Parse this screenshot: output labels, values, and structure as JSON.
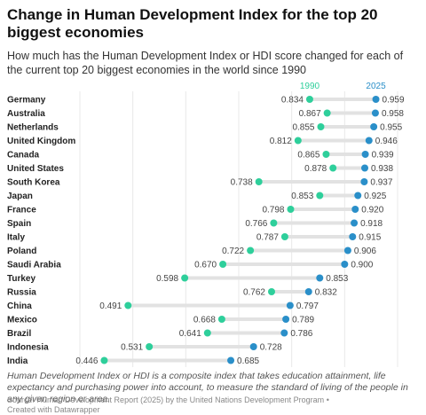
{
  "header": {
    "title": "Change in Human Development Index for the top 20 biggest economies",
    "subtitle": "How much has the Human Development Index or HDI score changed for each of the current top 20 biggest economies in the world since 1990"
  },
  "footer": {
    "note": "Human Development Index or HDI is a composite index that takes education attainment, life expectancy and purchasing power into account, to measure the standard of living of the people in any given region or area.",
    "source": "Source: Human Development Report (2025) by the United Nations Development Program",
    "credit": "Created with Datawrapper"
  },
  "colors": {
    "start": "#2ecf9b",
    "end": "#2a8fc9",
    "range_bar": "#e2e2e2",
    "grid": "#e8e8e8"
  },
  "chart_data": {
    "type": "range-dot",
    "xlim": [
      0.4,
      1.0
    ],
    "x_ticks": [
      "0.400",
      "0.500",
      "0.600",
      "0.700",
      "0.800",
      "0.900",
      "1.000"
    ],
    "grid": true,
    "series": [
      {
        "name": "1990",
        "color": "#2ecf9b"
      },
      {
        "name": "2025",
        "color": "#2a8fc9"
      }
    ],
    "rows": [
      {
        "country": "Germany",
        "start": 0.834,
        "end": 0.959
      },
      {
        "country": "Australia",
        "start": 0.867,
        "end": 0.958
      },
      {
        "country": "Netherlands",
        "start": 0.855,
        "end": 0.955
      },
      {
        "country": "United Kingdom",
        "start": 0.812,
        "end": 0.946
      },
      {
        "country": "Canada",
        "start": 0.865,
        "end": 0.939
      },
      {
        "country": "United States",
        "start": 0.878,
        "end": 0.938
      },
      {
        "country": "South Korea",
        "start": 0.738,
        "end": 0.937
      },
      {
        "country": "Japan",
        "start": 0.853,
        "end": 0.925
      },
      {
        "country": "France",
        "start": 0.798,
        "end": 0.92
      },
      {
        "country": "Spain",
        "start": 0.766,
        "end": 0.918
      },
      {
        "country": "Italy",
        "start": 0.787,
        "end": 0.915
      },
      {
        "country": "Poland",
        "start": 0.722,
        "end": 0.906
      },
      {
        "country": "Saudi Arabia",
        "start": 0.67,
        "end": 0.9
      },
      {
        "country": "Turkey",
        "start": 0.598,
        "end": 0.853
      },
      {
        "country": "Russia",
        "start": 0.762,
        "end": 0.832
      },
      {
        "country": "China",
        "start": 0.491,
        "end": 0.797
      },
      {
        "country": "Mexico",
        "start": 0.668,
        "end": 0.789
      },
      {
        "country": "Brazil",
        "start": 0.641,
        "end": 0.786
      },
      {
        "country": "Indonesia",
        "start": 0.531,
        "end": 0.728
      },
      {
        "country": "India",
        "start": 0.446,
        "end": 0.685
      }
    ]
  }
}
